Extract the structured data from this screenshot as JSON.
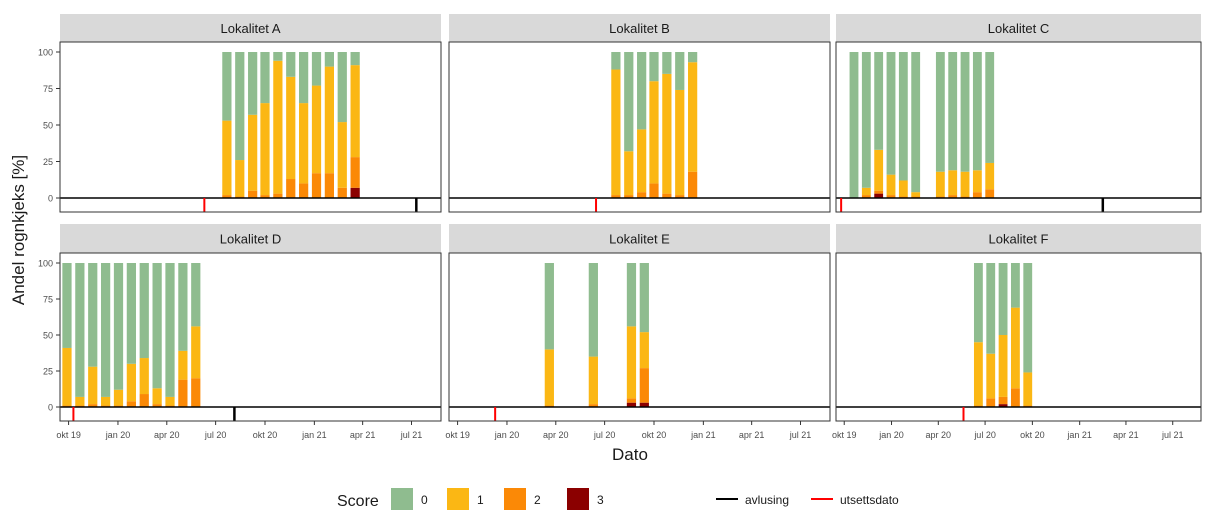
{
  "chart_data": {
    "type": "bar",
    "xlabel": "Dato",
    "ylabel": "Andel rognkjeks [%]",
    "ylim": [
      0,
      100
    ],
    "yticks": [
      0,
      25,
      50,
      75,
      100
    ],
    "xticks": [
      "2019-10-01",
      "2020-01-01",
      "2020-04-01",
      "2020-07-01",
      "2020-10-01",
      "2021-01-01",
      "2021-04-01",
      "2021-07-01"
    ],
    "xticklabels": [
      "okt 19",
      "jan 20",
      "apr 20",
      "jul 20",
      "okt 20",
      "jan 21",
      "apr 21",
      "jul 21"
    ],
    "xlim": [
      "2019-09-15",
      "2021-08-25"
    ],
    "legend": {
      "title": "Score",
      "position": "bottom",
      "score_colors": {
        "0": "#8fbc8f",
        "1": "#fbb714",
        "2": "#fb8906",
        "3": "#8b0000"
      },
      "score_labels": [
        "0",
        "1",
        "2",
        "3"
      ],
      "line_items": [
        {
          "label": "avlusing",
          "color": "#000000"
        },
        {
          "label": "utsettsdato",
          "color": "#ff0000"
        }
      ]
    },
    "panels": [
      {
        "title": "Lokalitet A",
        "utsettsdato": [
          "2020-06-10"
        ],
        "avlusing": [
          "2021-07-10"
        ],
        "bars": [
          {
            "date": "2020-07-22",
            "s1": 51,
            "s2": 2,
            "s3": 0
          },
          {
            "date": "2020-08-15",
            "s1": 25,
            "s2": 1,
            "s3": 0
          },
          {
            "date": "2020-09-08",
            "s1": 52,
            "s2": 5,
            "s3": 0
          },
          {
            "date": "2020-10-01",
            "s1": 63,
            "s2": 2,
            "s3": 0
          },
          {
            "date": "2020-10-25",
            "s1": 91,
            "s2": 3,
            "s3": 0
          },
          {
            "date": "2020-11-18",
            "s1": 70,
            "s2": 13,
            "s3": 0
          },
          {
            "date": "2020-12-12",
            "s1": 55,
            "s2": 10,
            "s3": 0
          },
          {
            "date": "2021-01-05",
            "s1": 60,
            "s2": 17,
            "s3": 0
          },
          {
            "date": "2021-01-29",
            "s1": 73,
            "s2": 17,
            "s3": 0
          },
          {
            "date": "2021-02-22",
            "s1": 45,
            "s2": 7,
            "s3": 0
          },
          {
            "date": "2021-03-18",
            "s1": 63,
            "s2": 21,
            "s3": 7
          }
        ]
      },
      {
        "title": "Lokalitet B",
        "utsettsdato": [
          "2020-06-15"
        ],
        "avlusing": [],
        "bars": [
          {
            "date": "2020-07-22",
            "s1": 86,
            "s2": 2,
            "s3": 0
          },
          {
            "date": "2020-08-15",
            "s1": 30,
            "s2": 2,
            "s3": 0
          },
          {
            "date": "2020-09-08",
            "s1": 43,
            "s2": 4,
            "s3": 0
          },
          {
            "date": "2020-10-01",
            "s1": 70,
            "s2": 10,
            "s3": 0
          },
          {
            "date": "2020-10-25",
            "s1": 82,
            "s2": 3,
            "s3": 0
          },
          {
            "date": "2020-11-18",
            "s1": 72,
            "s2": 2,
            "s3": 0
          },
          {
            "date": "2020-12-12",
            "s1": 75,
            "s2": 18,
            "s3": 0
          }
        ]
      },
      {
        "title": "Lokalitet C",
        "utsettsdato": [
          "2019-09-25"
        ],
        "avlusing": [
          "2021-02-15"
        ],
        "bars": [
          {
            "date": "2019-10-20",
            "s1": 0,
            "s2": 0,
            "s3": 0
          },
          {
            "date": "2019-11-13",
            "s1": 5,
            "s2": 2,
            "s3": 0
          },
          {
            "date": "2019-12-07",
            "s1": 28,
            "s2": 2,
            "s3": 3
          },
          {
            "date": "2019-12-31",
            "s1": 14,
            "s2": 2,
            "s3": 0
          },
          {
            "date": "2020-01-24",
            "s1": 11,
            "s2": 1,
            "s3": 0
          },
          {
            "date": "2020-02-17",
            "s1": 3,
            "s2": 1,
            "s3": 0
          },
          {
            "date": "2020-04-05",
            "s1": 17,
            "s2": 1,
            "s3": 0
          },
          {
            "date": "2020-04-29",
            "s1": 17,
            "s2": 2,
            "s3": 0
          },
          {
            "date": "2020-05-23",
            "s1": 17,
            "s2": 1,
            "s3": 0
          },
          {
            "date": "2020-06-16",
            "s1": 15,
            "s2": 4,
            "s3": 0
          },
          {
            "date": "2020-07-10",
            "s1": 18,
            "s2": 6,
            "s3": 0
          }
        ]
      },
      {
        "title": "Lokalitet D",
        "utsettsdato": [
          "2019-10-10"
        ],
        "avlusing": [
          "2020-08-05"
        ],
        "bars": [
          {
            "date": "2019-09-28",
            "s1": 40,
            "s2": 1,
            "s3": 0
          },
          {
            "date": "2019-10-22",
            "s1": 6,
            "s2": 1,
            "s3": 0
          },
          {
            "date": "2019-11-15",
            "s1": 26,
            "s2": 2,
            "s3": 0
          },
          {
            "date": "2019-12-09",
            "s1": 6,
            "s2": 1,
            "s3": 0
          },
          {
            "date": "2020-01-02",
            "s1": 11,
            "s2": 1,
            "s3": 0
          },
          {
            "date": "2020-01-26",
            "s1": 26,
            "s2": 4,
            "s3": 0
          },
          {
            "date": "2020-02-19",
            "s1": 25,
            "s2": 9,
            "s3": 0
          },
          {
            "date": "2020-03-14",
            "s1": 11,
            "s2": 2,
            "s3": 0
          },
          {
            "date": "2020-04-07",
            "s1": 6,
            "s2": 1,
            "s3": 0
          },
          {
            "date": "2020-05-01",
            "s1": 20,
            "s2": 19,
            "s3": 0
          },
          {
            "date": "2020-05-25",
            "s1": 36,
            "s2": 20,
            "s3": 0
          }
        ]
      },
      {
        "title": "Lokalitet E",
        "utsettsdato": [
          "2019-12-10"
        ],
        "avlusing": [],
        "bars": [
          {
            "date": "2020-03-20",
            "s1": 39,
            "s2": 1,
            "s3": 0
          },
          {
            "date": "2020-06-10",
            "s1": 33,
            "s2": 2,
            "s3": 0
          },
          {
            "date": "2020-08-20",
            "s1": 50,
            "s2": 3,
            "s3": 3
          },
          {
            "date": "2020-09-13",
            "s1": 25,
            "s2": 24,
            "s3": 3
          }
        ]
      },
      {
        "title": "Lokalitet F",
        "utsettsdato": [
          "2020-05-20"
        ],
        "avlusing": [],
        "bars": [
          {
            "date": "2020-06-18",
            "s1": 44,
            "s2": 1,
            "s3": 0
          },
          {
            "date": "2020-07-12",
            "s1": 31,
            "s2": 6,
            "s3": 0
          },
          {
            "date": "2020-08-05",
            "s1": 43,
            "s2": 5,
            "s3": 2
          },
          {
            "date": "2020-08-29",
            "s1": 56,
            "s2": 13,
            "s3": 0
          },
          {
            "date": "2020-09-22",
            "s1": 23,
            "s2": 1,
            "s3": 0
          }
        ]
      }
    ]
  }
}
